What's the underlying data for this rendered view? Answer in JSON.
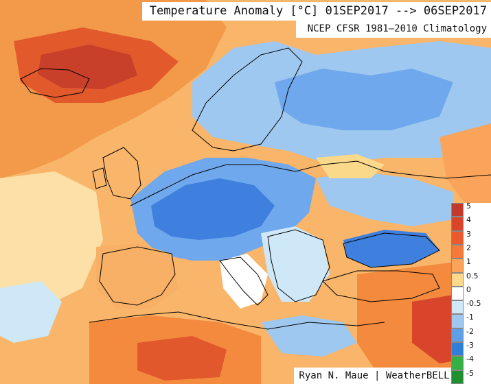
{
  "header": {
    "title": "Temperature Anomaly [°C] 01SEP2017 --> 06SEP2017",
    "subtitle": "NCEP CFSR 1981–2010 Climatology"
  },
  "footer": {
    "credit": "Ryan N. Maue | WeatherBELL"
  },
  "legend": {
    "items": [
      {
        "label": "5",
        "color": "#c0392b"
      },
      {
        "label": "4",
        "color": "#d9452b"
      },
      {
        "label": "3",
        "color": "#ea5a2d"
      },
      {
        "label": "2",
        "color": "#f47a3a"
      },
      {
        "label": "1",
        "color": "#f9a45a"
      },
      {
        "label": "0.5",
        "color": "#fbd98a"
      },
      {
        "label": "0",
        "color": "#ffffff"
      },
      {
        "label": "-0.5",
        "color": "#cfe8f7"
      },
      {
        "label": "-1",
        "color": "#9ec8ef"
      },
      {
        "label": "-2",
        "color": "#5f9fe8"
      },
      {
        "label": "-3",
        "color": "#2f7fd9"
      },
      {
        "label": "-4",
        "color": "#35b045"
      },
      {
        "label": "-5",
        "color": "#1f8f2f"
      }
    ]
  },
  "colors": {
    "warm_strong": "#e0582c",
    "warm": "#f48a3e",
    "warm_light": "#f7b066",
    "neutral": "#fff2c8",
    "cool_light": "#b6d8f3",
    "cool": "#6fa8ec",
    "cool_strong": "#3f7fdd",
    "coastline": "#000000"
  }
}
